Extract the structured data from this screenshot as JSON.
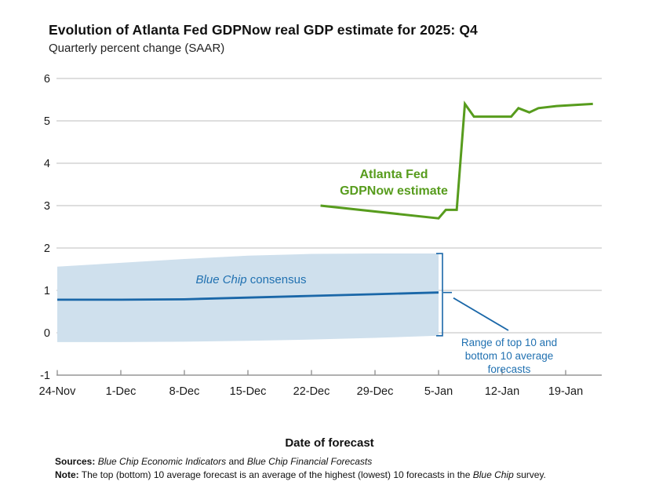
{
  "chart": {
    "title": "Evolution of Atlanta Fed GDPNow real GDP estimate for 2025: Q4",
    "subtitle": "Quarterly percent change (SAAR)"
  },
  "chart_data": {
    "type": "line",
    "title": "Evolution of Atlanta Fed GDPNow real GDP estimate for 2025: Q4",
    "subtitle": "Quarterly percent change (SAAR)",
    "xlabel": "Date of forecast",
    "ylabel": "Quarterly percent change (SAAR)",
    "ylim": [
      -1,
      6
    ],
    "y_ticks": [
      6,
      5,
      4,
      3,
      2,
      1,
      0,
      -1
    ],
    "x_tick_labels": [
      "24-Nov",
      "1-Dec",
      "8-Dec",
      "15-Dec",
      "22-Dec",
      "29-Dec",
      "5-Jan",
      "12-Jan",
      "19-Jan"
    ],
    "x_tick_days": [
      0,
      7,
      14,
      21,
      28,
      35,
      42,
      49,
      56
    ],
    "grid": "horizontal gridlines at integer values, no legend box",
    "series": [
      {
        "name": "Atlanta Fed GDPNow estimate",
        "type": "line",
        "color": "#579c1d",
        "points": [
          {
            "date": "23-Dec",
            "d": 29,
            "value": 3.0
          },
          {
            "date": "4-Jan",
            "d": 42,
            "value": 2.7
          },
          {
            "date": "5-Jan",
            "d": 42.8,
            "value": 2.9
          },
          {
            "date": "7-Jan",
            "d": 44,
            "value": 2.9
          },
          {
            "date": "8-Jan",
            "d": 44.9,
            "value": 5.4
          },
          {
            "date": "9-Jan",
            "d": 45.9,
            "value": 5.1
          },
          {
            "date": "13-Jan",
            "d": 50,
            "value": 5.1
          },
          {
            "date": "14-Jan",
            "d": 50.8,
            "value": 5.3
          },
          {
            "date": "15-Jan",
            "d": 52,
            "value": 5.2
          },
          {
            "date": "16-Jan",
            "d": 53,
            "value": 5.3
          },
          {
            "date": "18-Jan",
            "d": 55,
            "value": 5.35
          },
          {
            "date": "22-Jan",
            "d": 59,
            "value": 5.4
          }
        ]
      },
      {
        "name": "Blue Chip consensus",
        "type": "line",
        "color": "#1a67a8",
        "points": [
          {
            "date": "24-Nov",
            "d": 0,
            "value": 0.78
          },
          {
            "date": "1-Dec",
            "d": 7,
            "value": 0.78
          },
          {
            "date": "8-Dec",
            "d": 14,
            "value": 0.79
          },
          {
            "date": "15-Dec",
            "d": 21,
            "value": 0.83
          },
          {
            "date": "22-Dec",
            "d": 28,
            "value": 0.87
          },
          {
            "date": "29-Dec",
            "d": 35,
            "value": 0.91
          },
          {
            "date": "5-Jan",
            "d": 42,
            "value": 0.95
          }
        ]
      }
    ],
    "band": {
      "name": "Range of top 10 and bottom 10 average forecasts",
      "color": "#cfe0ed",
      "points": [
        {
          "date": "24-Nov",
          "d": 0,
          "top": 1.56,
          "bottom": -0.22
        },
        {
          "date": "1-Dec",
          "d": 7,
          "top": 1.65,
          "bottom": -0.22
        },
        {
          "date": "8-Dec",
          "d": 14,
          "top": 1.74,
          "bottom": -0.21
        },
        {
          "date": "15-Dec",
          "d": 21,
          "top": 1.82,
          "bottom": -0.19
        },
        {
          "date": "22-Dec",
          "d": 28,
          "top": 1.86,
          "bottom": -0.16
        },
        {
          "date": "29-Dec",
          "d": 35,
          "top": 1.87,
          "bottom": -0.12
        },
        {
          "date": "5-Jan",
          "d": 42,
          "top": 1.87,
          "bottom": -0.07
        }
      ]
    }
  },
  "annotations": {
    "gdpnow_line1": "Atlanta Fed",
    "gdpnow_line2": "GDPNow estimate",
    "consensus_italic": "Blue Chip",
    "consensus_rest": " consensus",
    "range_line1": "Range of top 10 and",
    "range_line2": "bottom 10 average",
    "range_line3": "forecasts"
  },
  "footer": {
    "sources_label": "Sources:",
    "source_1": "Blue Chip Economic Indicators",
    "sources_and": " and ",
    "source_2": "Blue Chip Financial Forecasts",
    "note_label": "Note:",
    "note_text_1": " The top (bottom) 10 average forecast is an average of the highest (lowest) 10 forecasts in the ",
    "note_italic": "Blue Chip",
    "note_text_2": " survey."
  },
  "colors": {
    "green": "#579c1d",
    "blue_line": "#1a67a8",
    "blue_text": "#2171b1",
    "band": "#cfe0ed",
    "grid": "#c9c9c9",
    "axis": "#959595",
    "text": "#1a1a1a"
  }
}
